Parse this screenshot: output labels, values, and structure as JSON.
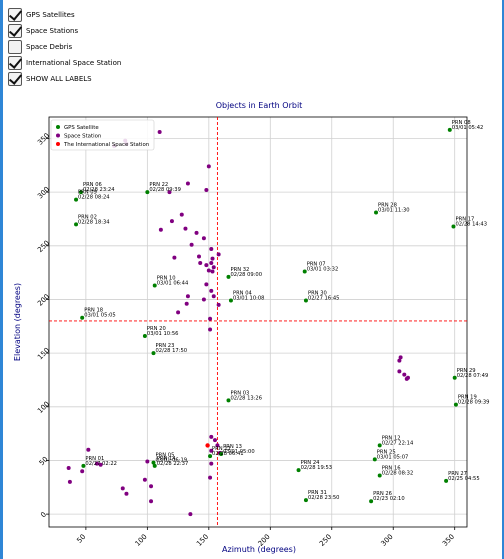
{
  "controls": [
    {
      "label": "GPS Satellites",
      "checked": true
    },
    {
      "label": "Space Stations",
      "checked": true
    },
    {
      "label": "Space Debris",
      "checked": false
    },
    {
      "label": "International Space Station",
      "checked": true
    },
    {
      "label": "SHOW ALL LABELS",
      "checked": true
    }
  ],
  "chart_data": {
    "type": "scatter",
    "title": "Objects in Earth Orbit",
    "xlabel": "Azimuth (degrees)",
    "ylabel": "Elevation (degrees)",
    "xlim": [
      20,
      360
    ],
    "ylim": [
      -12,
      370
    ],
    "x_ticks": [
      50,
      100,
      150,
      200,
      250,
      300,
      350
    ],
    "y_ticks": [
      0,
      50,
      100,
      150,
      200,
      250,
      300,
      350
    ],
    "grid": true,
    "legend_position": "top-left",
    "legend": [
      "GPS Satellite",
      "Space Station",
      "The International Space Station"
    ],
    "colors": {
      "gps": "#008000",
      "station": "#800080",
      "iss": "#ff0000",
      "title": "#000080"
    },
    "crosshair": {
      "x": 157,
      "y": 180
    },
    "gps_satellites": [
      {
        "label": "PRN 08",
        "time": "03/01 05:42",
        "x": 346,
        "y": 358
      },
      {
        "label": "PRN 06",
        "time": "02/28 23:24",
        "x": 46,
        "y": 300
      },
      {
        "label": "PRN 09",
        "time": "02/28 08:24",
        "x": 42,
        "y": 293
      },
      {
        "label": "PRN 22",
        "time": "02/28 09:39",
        "x": 100,
        "y": 300
      },
      {
        "label": "PRN 28",
        "time": "03/01 11:30",
        "x": 286,
        "y": 281
      },
      {
        "label": "PRN 02",
        "time": "02/28 18:34",
        "x": 42,
        "y": 270
      },
      {
        "label": "PRN 17",
        "time": "02/28 14:43",
        "x": 349,
        "y": 268
      },
      {
        "label": "PRN 07",
        "time": "03/01 03:32",
        "x": 228,
        "y": 226
      },
      {
        "label": "PRN 32",
        "time": "02/28 09:00",
        "x": 166,
        "y": 221
      },
      {
        "label": "PRN 10",
        "time": "03/01 06:44",
        "x": 106,
        "y": 213
      },
      {
        "label": "PRN 30",
        "time": "02/27 16:45",
        "x": 229,
        "y": 199
      },
      {
        "label": "PRN 04",
        "time": "03/01 10:08",
        "x": 168,
        "y": 199
      },
      {
        "label": "PRN 18",
        "time": "03/01 05:05",
        "x": 47,
        "y": 183
      },
      {
        "label": "PRN 20",
        "time": "03/01 10:56",
        "x": 98,
        "y": 166
      },
      {
        "label": "PRN 23",
        "time": "02/28 17:50",
        "x": 105,
        "y": 150
      },
      {
        "label": "PRN 29",
        "time": "02/28 07:49",
        "x": 350,
        "y": 127
      },
      {
        "label": "PRN 19",
        "time": "02/28 09:39",
        "x": 351,
        "y": 102
      },
      {
        "label": "PRN 03",
        "time": "02/28 13:26",
        "x": 166,
        "y": 106
      },
      {
        "label": "PRN 12",
        "time": "02/27 22:14",
        "x": 289,
        "y": 64
      },
      {
        "label": "PRN 13",
        "time": "03/01 05:00",
        "x": 160,
        "y": 56
      },
      {
        "label": "PRN 11",
        "time": "02/28 06:41",
        "x": 151,
        "y": 54
      },
      {
        "label": "PRN 25",
        "time": "03/01 05:07",
        "x": 285,
        "y": 51
      },
      {
        "label": "PRN 05",
        "time": "03/01 06:19",
        "x": 105,
        "y": 48
      },
      {
        "label": "PRN 14",
        "time": "02/28 22:37",
        "x": 106,
        "y": 45
      },
      {
        "label": "PRN 01",
        "time": "02/27 02:22",
        "x": 48,
        "y": 45
      },
      {
        "label": "PRN 24",
        "time": "02/28 19:53",
        "x": 223,
        "y": 41
      },
      {
        "label": "PRN 16",
        "time": "02/28 08:32",
        "x": 289,
        "y": 36
      },
      {
        "label": "PRN 27",
        "time": "02/25 04:55",
        "x": 343,
        "y": 31
      },
      {
        "label": "PRN 31",
        "time": "02/28 23:50",
        "x": 229,
        "y": 13
      },
      {
        "label": "PRN 26",
        "time": "02/23 02:10",
        "x": 282,
        "y": 12
      }
    ],
    "space_stations": [
      {
        "x": 73,
        "y": 343
      },
      {
        "x": 82,
        "y": 348
      },
      {
        "x": 83,
        "y": 345
      },
      {
        "x": 110,
        "y": 356
      },
      {
        "x": 150,
        "y": 324
      },
      {
        "x": 118,
        "y": 300
      },
      {
        "x": 133,
        "y": 308
      },
      {
        "x": 148,
        "y": 302
      },
      {
        "x": 120,
        "y": 273
      },
      {
        "x": 111,
        "y": 265
      },
      {
        "x": 131,
        "y": 266
      },
      {
        "x": 128,
        "y": 279
      },
      {
        "x": 140,
        "y": 262
      },
      {
        "x": 146,
        "y": 257
      },
      {
        "x": 152,
        "y": 247
      },
      {
        "x": 158,
        "y": 242
      },
      {
        "x": 122,
        "y": 239
      },
      {
        "x": 136,
        "y": 251
      },
      {
        "x": 142,
        "y": 240
      },
      {
        "x": 148,
        "y": 232
      },
      {
        "x": 150,
        "y": 227
      },
      {
        "x": 153,
        "y": 226
      },
      {
        "x": 143,
        "y": 234
      },
      {
        "x": 153,
        "y": 238
      },
      {
        "x": 154,
        "y": 230
      },
      {
        "x": 152,
        "y": 234
      },
      {
        "x": 148,
        "y": 214
      },
      {
        "x": 132,
        "y": 196
      },
      {
        "x": 133,
        "y": 203
      },
      {
        "x": 125,
        "y": 188
      },
      {
        "x": 151,
        "y": 182
      },
      {
        "x": 151,
        "y": 172
      },
      {
        "x": 154,
        "y": 203
      },
      {
        "x": 146,
        "y": 200
      },
      {
        "x": 152,
        "y": 208
      },
      {
        "x": 158,
        "y": 195
      },
      {
        "x": 306,
        "y": 146
      },
      {
        "x": 305,
        "y": 133
      },
      {
        "x": 309,
        "y": 130
      },
      {
        "x": 311,
        "y": 126
      },
      {
        "x": 312,
        "y": 127
      },
      {
        "x": 305,
        "y": 143
      },
      {
        "x": 155,
        "y": 69
      },
      {
        "x": 152,
        "y": 72
      },
      {
        "x": 157,
        "y": 64
      },
      {
        "x": 159,
        "y": 57
      },
      {
        "x": 152,
        "y": 59
      },
      {
        "x": 152,
        "y": 47
      },
      {
        "x": 151,
        "y": 34
      },
      {
        "x": 52,
        "y": 60
      },
      {
        "x": 36,
        "y": 43
      },
      {
        "x": 47,
        "y": 40
      },
      {
        "x": 37,
        "y": 30
      },
      {
        "x": 62,
        "y": 46
      },
      {
        "x": 59,
        "y": 47
      },
      {
        "x": 100,
        "y": 49
      },
      {
        "x": 98,
        "y": 32
      },
      {
        "x": 103,
        "y": 26
      },
      {
        "x": 80,
        "y": 24
      },
      {
        "x": 83,
        "y": 19
      },
      {
        "x": 103,
        "y": 12
      },
      {
        "x": 135,
        "y": 0
      }
    ],
    "iss": [
      {
        "x": 149,
        "y": 64
      }
    ]
  }
}
